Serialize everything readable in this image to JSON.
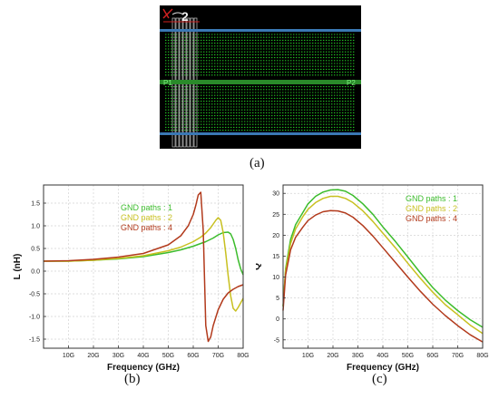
{
  "figure_a": {
    "caption": "(a)",
    "port_left_label": "P1",
    "port_right_label": "P2",
    "corner_label": "2",
    "background_color": "#000000",
    "grid_color": "#22c022",
    "rail_color": "#3a78b4"
  },
  "chart_data": [
    {
      "id": "b",
      "type": "line",
      "caption": "(b)",
      "xlabel": "Frequency (GHz)",
      "ylabel": "L (nH)",
      "xlim": [
        0,
        80
      ],
      "ylim": [
        -1.7,
        1.9
      ],
      "x_ticks": [
        10,
        20,
        30,
        40,
        50,
        60,
        70,
        80
      ],
      "x_tick_labels": [
        "10G",
        "20G",
        "30G",
        "40G",
        "50G",
        "60G",
        "70G",
        "80G"
      ],
      "y_ticks": [
        -1.5,
        -1.0,
        -0.5,
        0.0,
        0.5,
        1.0,
        1.5
      ],
      "y_tick_labels": [
        "-1.5",
        "-1.0",
        "-0.5",
        "0.0",
        "0.5",
        "1.0",
        "1.5"
      ],
      "grid": true,
      "legend_position": "top-right",
      "series": [
        {
          "name": "GND paths : 1",
          "color": "#3cbc2c",
          "x": [
            0,
            10,
            20,
            30,
            40,
            50,
            55,
            60,
            65,
            68,
            70,
            72,
            74,
            75,
            76,
            77,
            78,
            79,
            80
          ],
          "y": [
            0.22,
            0.22,
            0.24,
            0.27,
            0.32,
            0.41,
            0.47,
            0.55,
            0.65,
            0.73,
            0.8,
            0.85,
            0.86,
            0.82,
            0.7,
            0.5,
            0.25,
            0.05,
            -0.08
          ]
        },
        {
          "name": "GND paths : 2",
          "color": "#c8c020",
          "x": [
            0,
            10,
            20,
            30,
            40,
            50,
            55,
            60,
            63,
            65,
            67,
            69,
            70,
            71,
            72,
            73,
            74,
            75,
            76,
            77,
            78,
            79,
            80
          ],
          "y": [
            0.22,
            0.22,
            0.24,
            0.28,
            0.34,
            0.45,
            0.53,
            0.65,
            0.75,
            0.84,
            0.96,
            1.12,
            1.18,
            1.12,
            0.85,
            0.4,
            -0.1,
            -0.55,
            -0.82,
            -0.88,
            -0.8,
            -0.7,
            -0.6
          ]
        },
        {
          "name": "GND paths : 4",
          "color": "#b23a1c",
          "x": [
            0,
            10,
            20,
            30,
            40,
            50,
            55,
            58,
            60,
            61,
            62,
            63,
            64,
            65,
            66,
            67,
            68,
            70,
            72,
            74,
            76,
            78,
            80
          ],
          "y": [
            0.22,
            0.23,
            0.26,
            0.31,
            0.39,
            0.58,
            0.78,
            1.0,
            1.25,
            1.45,
            1.68,
            1.74,
            0.9,
            -1.2,
            -1.55,
            -1.45,
            -1.2,
            -0.85,
            -0.62,
            -0.48,
            -0.4,
            -0.34,
            -0.3
          ]
        }
      ]
    },
    {
      "id": "c",
      "type": "line",
      "caption": "(c)",
      "xlabel": "Frequency (GHz)",
      "ylabel": "Q",
      "xlim": [
        0,
        80
      ],
      "ylim": [
        -7,
        32
      ],
      "x_ticks": [
        10,
        20,
        30,
        40,
        50,
        60,
        70,
        80
      ],
      "x_tick_labels": [
        "10G",
        "20G",
        "30G",
        "40G",
        "50G",
        "60G",
        "70G",
        "80G"
      ],
      "y_ticks": [
        -5,
        0,
        5,
        10,
        15,
        20,
        25,
        30
      ],
      "y_tick_labels": [
        "-5",
        "0",
        "5",
        "10",
        "15",
        "20",
        "25",
        "30"
      ],
      "grid": true,
      "legend_position": "top-right",
      "series": [
        {
          "name": "GND paths : 1",
          "color": "#3cbc2c",
          "x": [
            0,
            1,
            3,
            5,
            8,
            10,
            13,
            16,
            19,
            22,
            25,
            28,
            32,
            36,
            40,
            45,
            50,
            55,
            60,
            65,
            70,
            75,
            80
          ],
          "y": [
            3,
            12,
            19,
            22.5,
            25.5,
            27.5,
            29.3,
            30.3,
            30.8,
            30.9,
            30.5,
            29.5,
            27.5,
            25,
            22,
            18.5,
            14.8,
            11,
            7.5,
            4.5,
            2,
            -0.2,
            -2
          ]
        },
        {
          "name": "GND paths : 2",
          "color": "#c8c020",
          "x": [
            0,
            1,
            3,
            5,
            8,
            10,
            13,
            16,
            19,
            22,
            25,
            28,
            32,
            36,
            40,
            45,
            50,
            55,
            60,
            65,
            70,
            75,
            80
          ],
          "y": [
            3,
            11.5,
            18,
            21.5,
            24.5,
            26.2,
            27.8,
            28.8,
            29.3,
            29.3,
            28.8,
            27.8,
            25.8,
            23.3,
            20.5,
            17,
            13.3,
            9.7,
            6.4,
            3.4,
            1,
            -1.5,
            -3.5
          ]
        },
        {
          "name": "GND paths : 4",
          "color": "#b23a1c",
          "x": [
            0,
            1,
            3,
            5,
            8,
            10,
            13,
            16,
            19,
            22,
            25,
            28,
            32,
            36,
            40,
            45,
            50,
            55,
            60,
            65,
            70,
            75,
            80
          ],
          "y": [
            2,
            10.5,
            16.5,
            19.5,
            22,
            23.5,
            24.8,
            25.6,
            25.9,
            25.8,
            25.3,
            24.3,
            22.3,
            19.8,
            17,
            13.5,
            10,
            6.6,
            3.5,
            0.8,
            -1.6,
            -3.8,
            -5.5
          ]
        }
      ]
    }
  ]
}
